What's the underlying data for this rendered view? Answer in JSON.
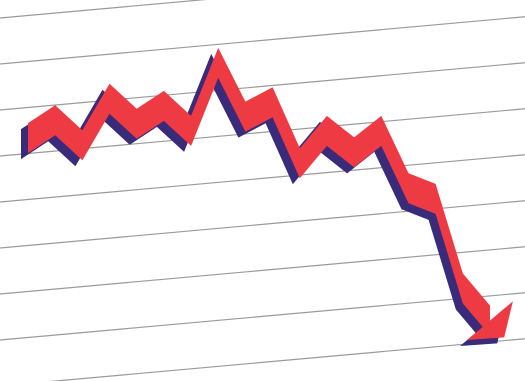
{
  "chart_data": {
    "type": "line",
    "title": "",
    "xlabel": "",
    "ylabel": "",
    "grid": true,
    "legend": "none",
    "series": [
      {
        "values": [
          62,
          67,
          60,
          73,
          66,
          71,
          64,
          83,
          68,
          72,
          55,
          64,
          58,
          64,
          48,
          45,
          20,
          11
        ],
        "color": "#ee3b43",
        "shadow_color": "#3a2a7a"
      }
    ],
    "x": [
      0,
      1,
      2,
      3,
      4,
      5,
      6,
      7,
      8,
      9,
      10,
      11,
      12,
      13,
      14,
      15,
      16,
      17
    ],
    "ylim": [
      0,
      95
    ],
    "trend": "downward"
  }
}
